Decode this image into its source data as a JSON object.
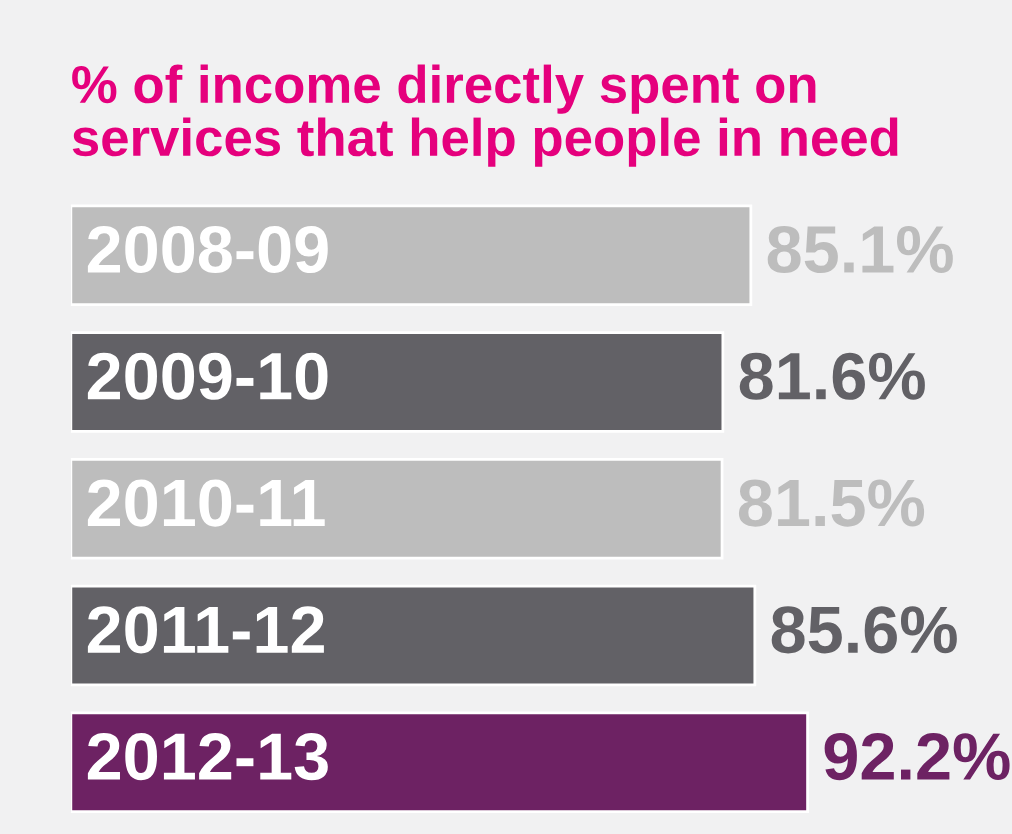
{
  "chart_data": {
    "type": "bar",
    "orientation": "horizontal",
    "title": "% of income directly spent on\nservices that help people in need",
    "categories": [
      "2008-09",
      "2009-10",
      "2010-11",
      "2011-12",
      "2012-13"
    ],
    "values": [
      85.1,
      81.6,
      81.5,
      85.6,
      92.2
    ],
    "colors": [
      "#bdbdbd",
      "#626166",
      "#bdbdbd",
      "#626166",
      "#6d2263"
    ],
    "value_labels": [
      "85.1%",
      "81.6%",
      "81.5%",
      "85.6%",
      "92.2%"
    ]
  }
}
